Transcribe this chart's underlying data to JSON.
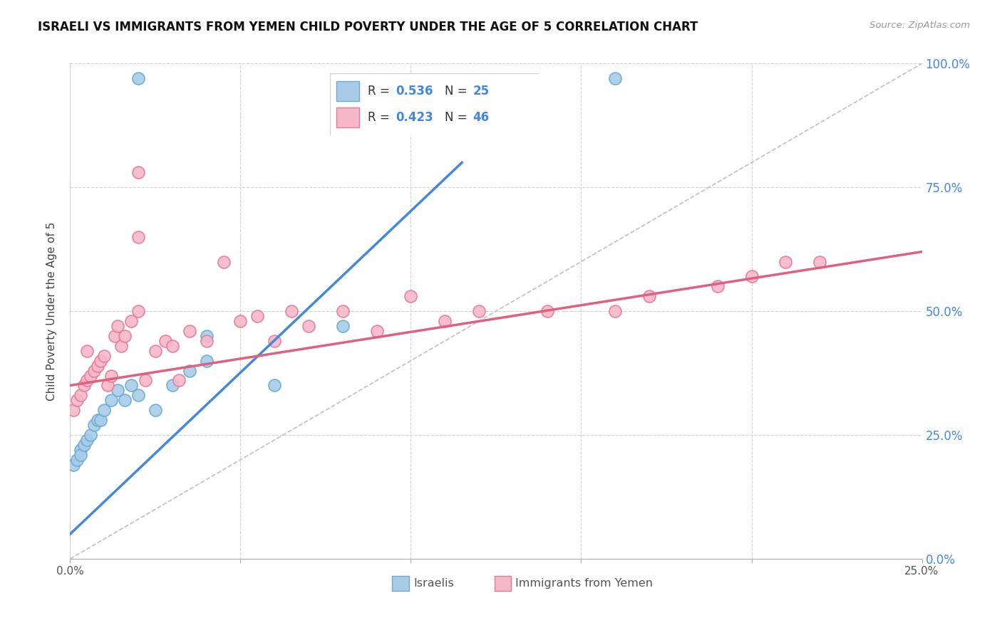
{
  "title": "ISRAELI VS IMMIGRANTS FROM YEMEN CHILD POVERTY UNDER THE AGE OF 5 CORRELATION CHART",
  "source": "Source: ZipAtlas.com",
  "ylabel_left": "Child Poverty Under the Age of 5",
  "xmin": 0.0,
  "xmax": 0.25,
  "ymin": 0.0,
  "ymax": 1.0,
  "xtick_left_label": "0.0%",
  "xtick_right_label": "25.0%",
  "yticks": [
    0.0,
    0.25,
    0.5,
    0.75,
    1.0
  ],
  "ytick_labels": [
    "0.0%",
    "25.0%",
    "50.0%",
    "75.0%",
    "100.0%"
  ],
  "background_color": "#ffffff",
  "grid_color": "#d0d0d0",
  "israeli_face": "#a8cce8",
  "israeli_edge": "#6aaad4",
  "yemen_face": "#f4b8c8",
  "yemen_edge": "#e87898",
  "israeli_line_color": "#4488dd",
  "yemen_line_color": "#e06080",
  "diag_line_color": "#c0c0c0",
  "right_tick_color": "#4488dd",
  "legend_label_color": "#333333",
  "legend_value_color": "#4488dd",
  "israeli_R": "0.536",
  "israeli_N": "25",
  "yemen_R": "0.423",
  "yemen_N": "46",
  "israeli_scatter_x": [
    0.001,
    0.002,
    0.003,
    0.003,
    0.004,
    0.005,
    0.006,
    0.007,
    0.008,
    0.009,
    0.01,
    0.012,
    0.014,
    0.016,
    0.018,
    0.02,
    0.025,
    0.03,
    0.035,
    0.04,
    0.06,
    0.08,
    0.04,
    0.02,
    0.16
  ],
  "israeli_scatter_y": [
    0.19,
    0.2,
    0.22,
    0.21,
    0.23,
    0.24,
    0.25,
    0.27,
    0.28,
    0.28,
    0.3,
    0.32,
    0.34,
    0.32,
    0.35,
    0.33,
    0.3,
    0.35,
    0.38,
    0.4,
    0.35,
    0.47,
    0.45,
    0.97,
    0.97
  ],
  "yemen_scatter_x": [
    0.001,
    0.002,
    0.003,
    0.004,
    0.005,
    0.005,
    0.006,
    0.007,
    0.008,
    0.009,
    0.01,
    0.011,
    0.012,
    0.013,
    0.014,
    0.015,
    0.016,
    0.018,
    0.02,
    0.022,
    0.025,
    0.028,
    0.03,
    0.032,
    0.035,
    0.04,
    0.045,
    0.05,
    0.055,
    0.06,
    0.065,
    0.07,
    0.08,
    0.09,
    0.1,
    0.11,
    0.12,
    0.14,
    0.16,
    0.17,
    0.19,
    0.2,
    0.21,
    0.22,
    0.02,
    0.02
  ],
  "yemen_scatter_y": [
    0.3,
    0.32,
    0.33,
    0.35,
    0.36,
    0.42,
    0.37,
    0.38,
    0.39,
    0.4,
    0.41,
    0.35,
    0.37,
    0.45,
    0.47,
    0.43,
    0.45,
    0.48,
    0.5,
    0.36,
    0.42,
    0.44,
    0.43,
    0.36,
    0.46,
    0.44,
    0.6,
    0.48,
    0.49,
    0.44,
    0.5,
    0.47,
    0.5,
    0.46,
    0.53,
    0.48,
    0.5,
    0.5,
    0.5,
    0.53,
    0.55,
    0.57,
    0.6,
    0.6,
    0.65,
    0.78
  ],
  "israeli_line_x0": 0.0,
  "israeli_line_y0": 0.05,
  "israeli_line_x1": 0.115,
  "israeli_line_y1": 0.8,
  "yemen_line_x0": 0.0,
  "yemen_line_y0": 0.35,
  "yemen_line_x1": 0.25,
  "yemen_line_y1": 0.62
}
